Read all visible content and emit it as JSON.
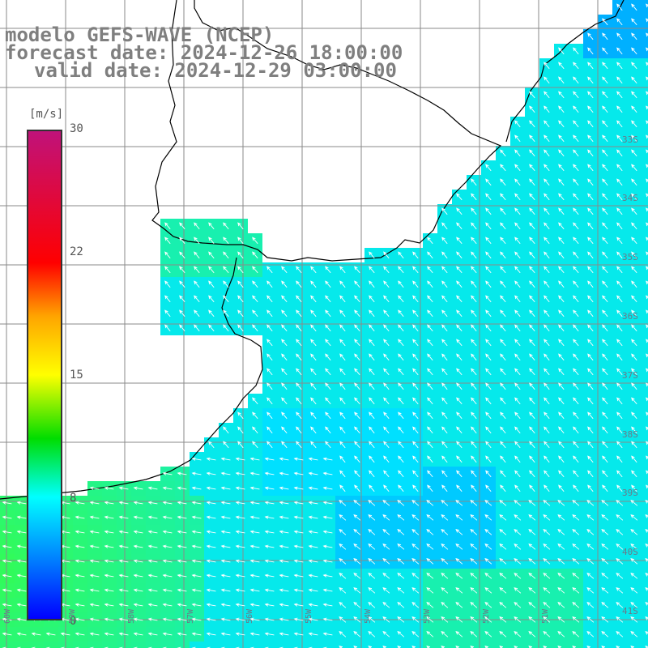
{
  "title": {
    "line1": "modelo GEFS-WAVE (NCEP)",
    "line2": "forecast date: 2024-12-26 18:00:00",
    "line3": "valid date: 2024-12-29 03:00:00"
  },
  "colorbar": {
    "unit": "[m/s]",
    "ticks": [
      "30",
      "22",
      "15",
      "8",
      "0"
    ]
  },
  "axes": {
    "lat_labels": [
      "33S",
      "34S",
      "35S",
      "36S",
      "37S",
      "38S",
      "39S",
      "40S",
      "41S"
    ],
    "lon_labels": [
      "60W",
      "59W",
      "58W",
      "57W",
      "56W",
      "55W",
      "54W",
      "53W",
      "52W",
      "51W"
    ]
  },
  "colors": {
    "land": "#ffffff",
    "grid": "#8a8a8a",
    "coast": "#000000",
    "arrow": "#ffffff",
    "title": "#7f7f7f"
  }
}
